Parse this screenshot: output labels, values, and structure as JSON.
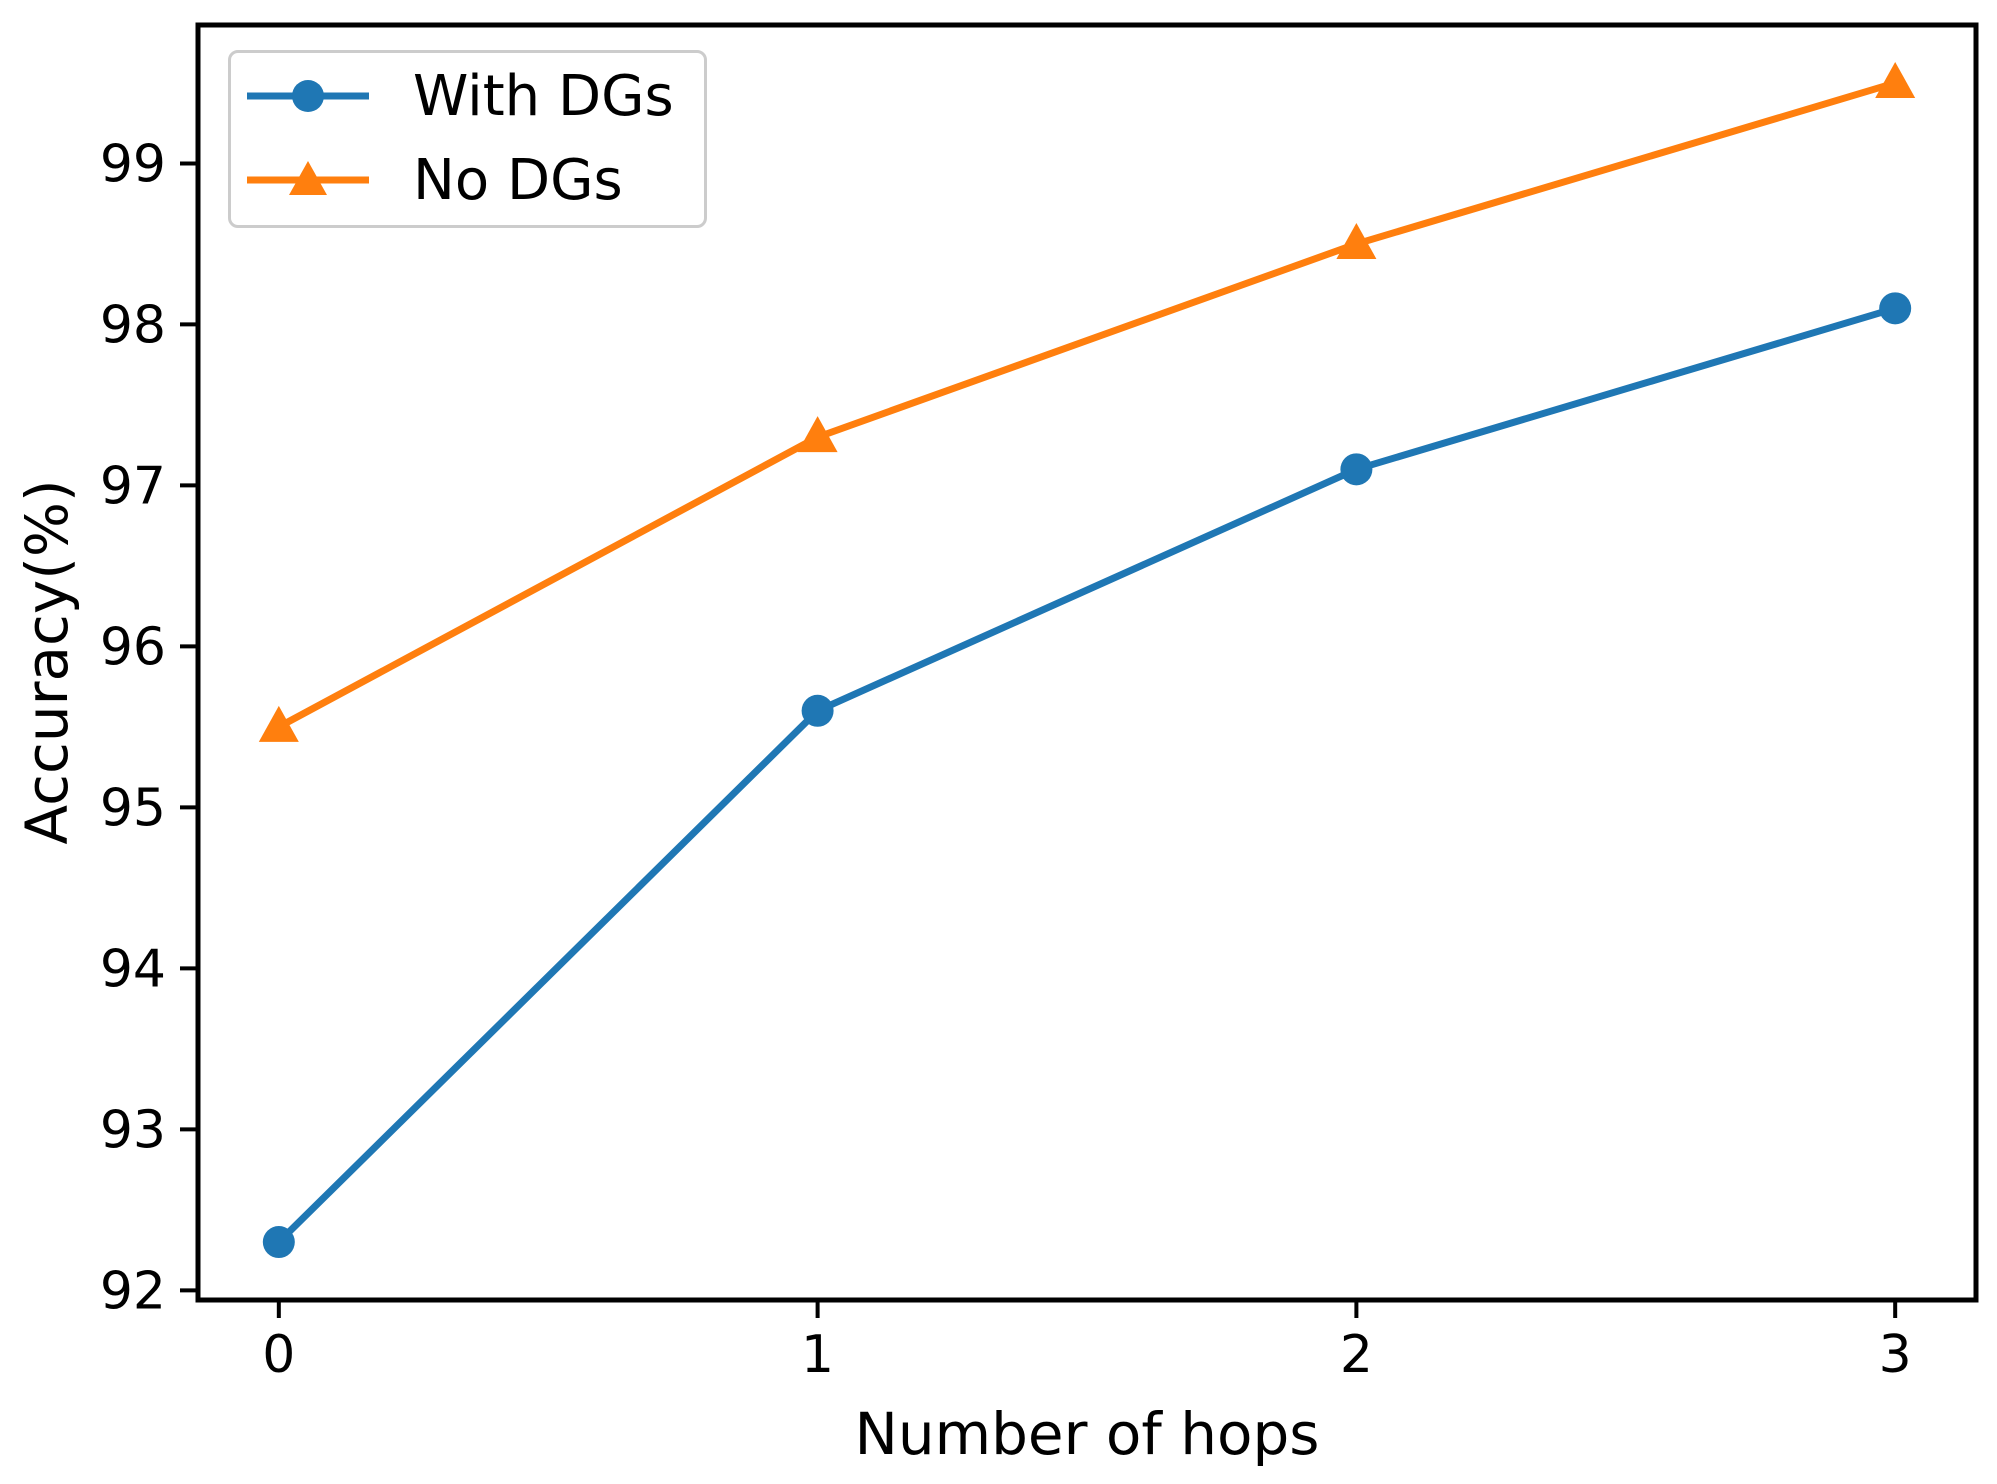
{
  "chart_data": {
    "type": "line",
    "title": "",
    "xlabel": "Number of hops",
    "ylabel": "Accuracy(%)",
    "x": [
      0,
      1,
      2,
      3
    ],
    "xticks": [
      0,
      1,
      2,
      3
    ],
    "xtick_labels": [
      "0",
      "1",
      "2",
      "3"
    ],
    "yticks": [
      92,
      93,
      94,
      95,
      96,
      97,
      98,
      99
    ],
    "ytick_labels": [
      "92",
      "93",
      "94",
      "95",
      "96",
      "97",
      "98",
      "99"
    ],
    "xlim": [
      -0.15,
      3.15
    ],
    "ylim": [
      91.94,
      99.86
    ],
    "grid": false,
    "legend_position": "upper left",
    "axis_color": "#000000",
    "legend_border_color": "#cccccc",
    "series": [
      {
        "name": "With DGs",
        "marker": "circle",
        "color": "#1f77b4",
        "values": [
          92.3,
          95.6,
          97.1,
          98.1
        ]
      },
      {
        "name": "No DGs",
        "marker": "triangle",
        "color": "#ff7f0e",
        "values": [
          95.5,
          97.3,
          98.5,
          99.5
        ]
      }
    ]
  }
}
